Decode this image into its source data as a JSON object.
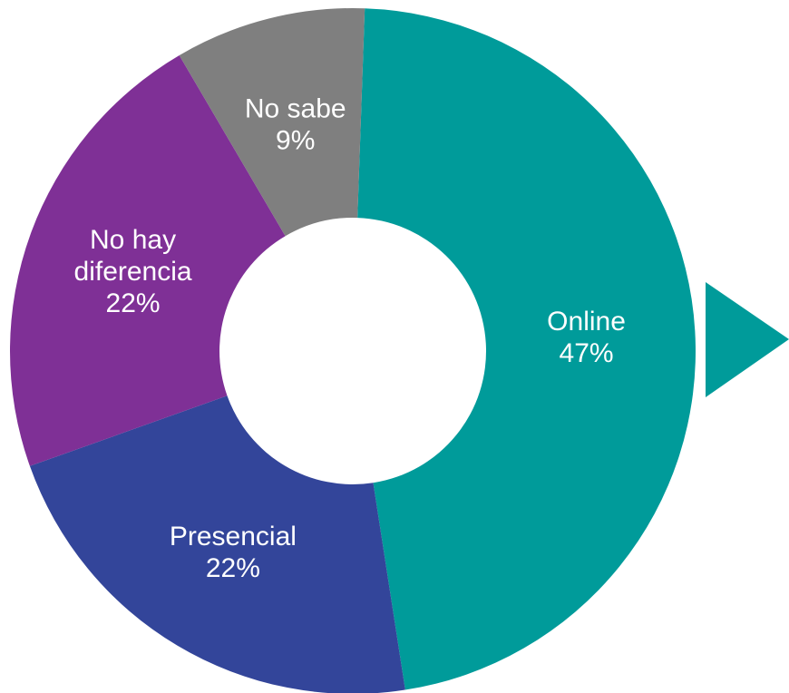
{
  "chart_data": {
    "type": "pie",
    "variant": "donut",
    "title": "",
    "legend": "none",
    "slices": [
      {
        "label": "Online",
        "value": 47,
        "value_label": "47%",
        "color": "#009B9A",
        "label_lines": [
          "Online"
        ]
      },
      {
        "label": "Presencial",
        "value": 22,
        "value_label": "22%",
        "color": "#33459A",
        "label_lines": [
          "Presencial"
        ]
      },
      {
        "label": "No hay diferencia",
        "value": 22,
        "value_label": "22%",
        "color": "#7F3096",
        "label_lines": [
          "No hay",
          "diferencia"
        ]
      },
      {
        "label": "No sabe",
        "value": 9,
        "value_label": "9%",
        "color": "#7F7F7F",
        "label_lines": [
          "No sabe"
        ]
      }
    ],
    "pointer_arrow": {
      "direction": "right",
      "color": "#009B9A"
    }
  }
}
